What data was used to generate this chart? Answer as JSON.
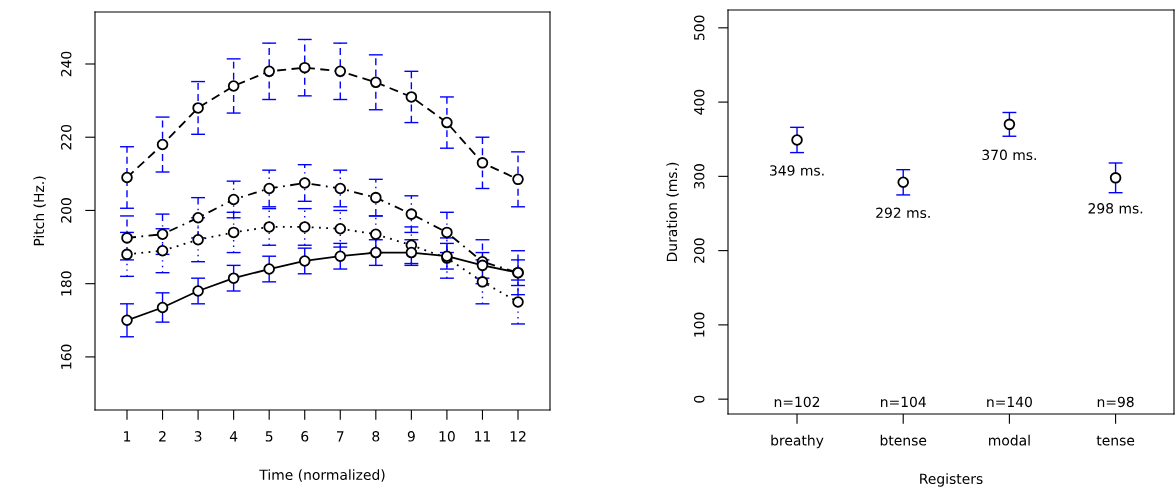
{
  "chart_data": [
    {
      "type": "line",
      "xlabel": "Time (normalized)",
      "ylabel": "Pitch (Hz.)",
      "x": [
        1,
        2,
        3,
        4,
        5,
        6,
        7,
        8,
        9,
        10,
        11,
        12
      ],
      "xlim": [
        0.1,
        12.9
      ],
      "xticks": [
        1,
        2,
        3,
        4,
        5,
        6,
        7,
        8,
        9,
        10,
        11,
        12
      ],
      "ylim": [
        145.5,
        254.2
      ],
      "yticks": [
        160,
        180,
        200,
        220,
        240
      ],
      "grid": false,
      "legend": false,
      "marker": "circle",
      "series": [
        {
          "color": "#000000",
          "line_style": "dashed",
          "values": [
            209,
            218,
            228,
            234,
            238,
            239,
            238,
            235,
            231,
            224,
            213,
            208.5
          ],
          "errors": [
            8.4,
            7.5,
            7.2,
            7.4,
            7.7,
            7.7,
            7.7,
            7.5,
            7,
            7,
            7,
            7.5
          ]
        },
        {
          "color": "#000000",
          "line_style": "dashdot",
          "values": [
            192.5,
            193.5,
            198,
            203,
            206,
            207.5,
            206,
            203.5,
            199,
            194,
            186,
            183
          ],
          "errors": [
            6,
            5.5,
            5.5,
            5,
            5,
            5,
            5,
            5,
            5,
            5.5,
            6,
            6
          ]
        },
        {
          "color": "#000000",
          "line_style": "dotted",
          "values": [
            188,
            189,
            192,
            194,
            195.5,
            195.5,
            195,
            193.5,
            190.5,
            187,
            180.5,
            175
          ],
          "errors": [
            6,
            6,
            6,
            5.5,
            5,
            5,
            5,
            5,
            5,
            5.5,
            6,
            6
          ]
        },
        {
          "color": "#000000",
          "line_style": "solid",
          "values": [
            170,
            173.5,
            178,
            181.5,
            184,
            186.2,
            187.5,
            188.5,
            188.5,
            187.5,
            185,
            183
          ],
          "errors": [
            4.5,
            4,
            3.5,
            3.5,
            3.5,
            3.5,
            3.5,
            3.5,
            3.5,
            3.5,
            3.5,
            3.5
          ]
        }
      ]
    },
    {
      "type": "scatter",
      "xlabel": "Registers",
      "ylabel": "Duration (ms.)",
      "categories": [
        "breathy",
        "btense",
        "modal",
        "tense"
      ],
      "ylim": [
        -20,
        524
      ],
      "yticks": [
        0,
        100,
        200,
        300,
        400,
        500
      ],
      "grid": false,
      "legend": false,
      "marker": "circle",
      "series": [
        {
          "color": "#000000",
          "values": [
            349,
            292,
            370,
            298
          ],
          "errors": [
            17,
            17,
            16,
            20
          ],
          "value_labels": [
            "349 ms.",
            "292 ms.",
            "370 ms.",
            "298 ms."
          ]
        }
      ],
      "annotations": [
        "n=102",
        "n=104",
        "n=140",
        "n=98"
      ]
    }
  ]
}
